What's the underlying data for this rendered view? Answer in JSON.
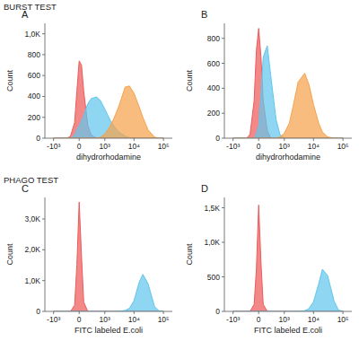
{
  "sections": [
    "BURST TEST",
    "PHAGO TEST"
  ],
  "chart_data": [
    {
      "type": "histogram",
      "title": "A",
      "x_label": "dihydrorhodamine",
      "y_label": "Count",
      "grid": false,
      "xlim": [
        -2000,
        200000
      ],
      "ylim": [
        0,
        1100
      ],
      "xticks": [
        {
          "value": -1000,
          "label": "-10³"
        },
        0,
        {
          "value": 1000,
          "label": "10³"
        },
        {
          "value": 10000,
          "label": "10⁴"
        },
        {
          "value": 100000,
          "label": "10⁵"
        }
      ],
      "yticks": [
        0,
        200,
        400,
        600,
        800,
        {
          "value": 1000,
          "label": "1,0K"
        }
      ],
      "x": [
        -1000,
        -300,
        -200,
        -100,
        -50,
        0,
        50,
        100,
        200,
        300,
        500,
        700,
        1000,
        1500,
        2000,
        3000,
        5000,
        7000,
        10000,
        15000,
        20000,
        30000,
        50000,
        70000,
        100000
      ],
      "series": [
        {
          "color": "#ee5a5a",
          "values": [
            0,
            0,
            20,
            150,
            450,
            740,
            700,
            450,
            120,
            30,
            0,
            0,
            0,
            0,
            0,
            0,
            0,
            0,
            0,
            0,
            0,
            0,
            0,
            0,
            0
          ]
        },
        {
          "color": "#62c6ec",
          "values": [
            0,
            0,
            0,
            30,
            80,
            120,
            170,
            220,
            330,
            380,
            395,
            360,
            280,
            180,
            120,
            60,
            20,
            5,
            0,
            0,
            0,
            0,
            0,
            0,
            0
          ]
        },
        {
          "color": "#f5a24e",
          "values": [
            0,
            0,
            0,
            0,
            0,
            0,
            0,
            0,
            0,
            0,
            0,
            10,
            40,
            110,
            180,
            300,
            490,
            500,
            430,
            300,
            200,
            80,
            10,
            0,
            0
          ]
        }
      ]
    },
    {
      "type": "histogram",
      "title": "B",
      "x_label": "dihydrorhodamine",
      "y_label": "Count",
      "grid": false,
      "xlim": [
        -2000,
        200000
      ],
      "ylim": [
        0,
        920
      ],
      "xticks": [
        {
          "value": -1000,
          "label": "-10³"
        },
        0,
        {
          "value": 1000,
          "label": "10³"
        },
        {
          "value": 10000,
          "label": "10⁴"
        },
        {
          "value": 100000,
          "label": "10⁵"
        }
      ],
      "yticks": [
        0,
        200,
        400,
        600,
        800
      ],
      "x": [
        -1000,
        -300,
        -200,
        -100,
        -50,
        0,
        50,
        100,
        200,
        300,
        500,
        700,
        1000,
        1500,
        2000,
        3000,
        5000,
        7000,
        10000,
        15000,
        20000,
        30000,
        50000,
        70000,
        100000
      ],
      "series": [
        {
          "color": "#ee5a5a",
          "values": [
            0,
            0,
            30,
            300,
            700,
            880,
            650,
            300,
            60,
            0,
            0,
            0,
            0,
            0,
            0,
            0,
            0,
            0,
            0,
            0,
            0,
            0,
            0,
            0,
            0
          ]
        },
        {
          "color": "#62c6ec",
          "values": [
            0,
            0,
            0,
            0,
            40,
            100,
            350,
            650,
            740,
            500,
            150,
            30,
            0,
            0,
            0,
            0,
            0,
            0,
            0,
            0,
            0,
            0,
            0,
            0,
            0
          ]
        },
        {
          "color": "#f5a24e",
          "values": [
            0,
            0,
            0,
            0,
            0,
            0,
            0,
            0,
            0,
            0,
            0,
            10,
            40,
            120,
            250,
            450,
            520,
            430,
            270,
            120,
            50,
            10,
            0,
            0,
            0
          ]
        }
      ]
    },
    {
      "type": "histogram",
      "title": "C",
      "x_label": "FITC labeled E.coli",
      "y_label": "Count",
      "grid": false,
      "xlim": [
        -2000,
        200000
      ],
      "ylim": [
        0,
        3700
      ],
      "xticks": [
        {
          "value": -1000,
          "label": "-10³"
        },
        0,
        {
          "value": 1000,
          "label": "10³"
        },
        {
          "value": 10000,
          "label": "10⁴"
        },
        {
          "value": 100000,
          "label": "10⁵"
        }
      ],
      "yticks": [
        0,
        {
          "value": 1000,
          "label": "1,0K"
        },
        {
          "value": 2000,
          "label": "2,0K"
        },
        {
          "value": 3000,
          "label": "3,0K"
        }
      ],
      "x": [
        -1000,
        -300,
        -200,
        -100,
        -50,
        0,
        50,
        100,
        200,
        300,
        500,
        700,
        1000,
        1500,
        2000,
        3000,
        5000,
        7000,
        10000,
        15000,
        20000,
        30000,
        50000,
        70000,
        100000
      ],
      "series": [
        {
          "color": "#ee5a5a",
          "values": [
            0,
            0,
            0,
            200,
            1500,
            3550,
            1800,
            300,
            0,
            0,
            0,
            0,
            0,
            0,
            0,
            0,
            0,
            0,
            0,
            0,
            0,
            0,
            0,
            0,
            0
          ]
        },
        {
          "color": "#62c6ec",
          "values": [
            0,
            0,
            0,
            0,
            0,
            0,
            0,
            0,
            0,
            0,
            0,
            0,
            0,
            0,
            0,
            0,
            30,
            100,
            350,
            950,
            1200,
            900,
            150,
            20,
            0
          ]
        }
      ]
    },
    {
      "type": "histogram",
      "title": "D",
      "x_label": "FITC labeled E.coli",
      "y_label": "Count",
      "grid": false,
      "xlim": [
        -2000,
        200000
      ],
      "ylim": [
        0,
        1650
      ],
      "xticks": [
        {
          "value": -1000,
          "label": "-10³"
        },
        0,
        {
          "value": 1000,
          "label": "10³"
        },
        {
          "value": 10000,
          "label": "10⁴"
        },
        {
          "value": 100000,
          "label": "10⁵"
        }
      ],
      "yticks": [
        0,
        500,
        {
          "value": 1000,
          "label": "1,0K"
        },
        {
          "value": 1500,
          "label": "1,5K"
        }
      ],
      "x": [
        -1000,
        -300,
        -200,
        -100,
        -50,
        0,
        50,
        100,
        200,
        300,
        500,
        700,
        1000,
        1500,
        2000,
        3000,
        5000,
        7000,
        10000,
        15000,
        20000,
        30000,
        50000,
        70000,
        100000
      ],
      "series": [
        {
          "color": "#ee5a5a",
          "values": [
            0,
            0,
            0,
            100,
            600,
            1540,
            700,
            100,
            0,
            0,
            0,
            0,
            0,
            0,
            0,
            0,
            0,
            0,
            0,
            0,
            0,
            0,
            0,
            0,
            0
          ]
        },
        {
          "color": "#62c6ec",
          "values": [
            0,
            0,
            0,
            0,
            0,
            0,
            0,
            0,
            0,
            0,
            0,
            0,
            0,
            0,
            0,
            0,
            10,
            40,
            140,
            400,
            610,
            520,
            150,
            20,
            0
          ]
        }
      ]
    }
  ]
}
